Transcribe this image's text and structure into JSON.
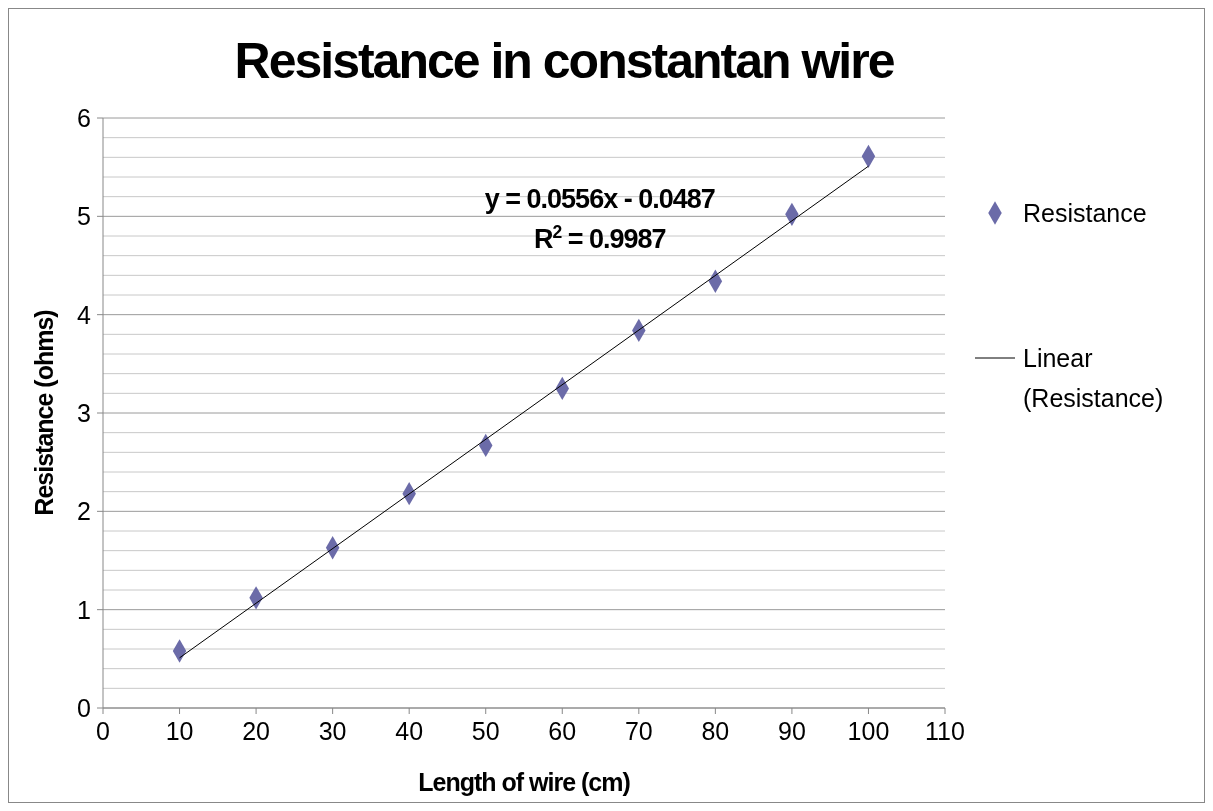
{
  "chart_data": {
    "type": "scatter",
    "title": "Resistance in constantan wire",
    "xlabel": "Length of wire (cm)",
    "ylabel": "Resistance (ohms)",
    "x": [
      10,
      20,
      30,
      40,
      50,
      60,
      70,
      80,
      90,
      100
    ],
    "series": [
      {
        "name": "Resistance",
        "color": "#6b6ba8",
        "marker": "diamond",
        "values": [
          0.58,
          1.12,
          1.63,
          2.18,
          2.67,
          3.25,
          3.84,
          4.34,
          5.02,
          5.61
        ]
      },
      {
        "name": "Linear (Resistance)",
        "type": "line",
        "color": "#000000",
        "marker": "none",
        "x": [
          10,
          100
        ],
        "values": [
          0.51,
          5.51
        ]
      }
    ],
    "xlim": [
      0,
      110
    ],
    "xticks": [
      0,
      10,
      20,
      30,
      40,
      50,
      60,
      70,
      80,
      90,
      100,
      110
    ],
    "ylim": [
      0,
      6
    ],
    "yticks": [
      0,
      {
        "value": 0.2,
        "label": null
      },
      {
        "value": 0.4,
        "label": null
      },
      {
        "value": 0.6,
        "label": null
      },
      {
        "value": 0.8,
        "label": null
      },
      1,
      {
        "value": 1.2,
        "label": null
      },
      {
        "value": 1.4,
        "label": null
      },
      {
        "value": 1.6,
        "label": null
      },
      {
        "value": 1.8,
        "label": null
      },
      2,
      {
        "value": 2.2,
        "label": null
      },
      {
        "value": 2.4,
        "label": null
      },
      {
        "value": 2.6,
        "label": null
      },
      {
        "value": 2.8,
        "label": null
      },
      3,
      {
        "value": 3.2,
        "label": null
      },
      {
        "value": 3.4,
        "label": null
      },
      {
        "value": 3.6,
        "label": null
      },
      {
        "value": 3.8,
        "label": null
      },
      4,
      {
        "value": 4.2,
        "label": null
      },
      {
        "value": 4.4,
        "label": null
      },
      {
        "value": 4.6,
        "label": null
      },
      {
        "value": 4.8,
        "label": null
      },
      5,
      {
        "value": 5.2,
        "label": null
      },
      {
        "value": 5.4,
        "label": null
      },
      {
        "value": 5.6,
        "label": null
      },
      {
        "value": 5.8,
        "label": null
      },
      6
    ],
    "grid": "y",
    "legend": "right",
    "annotations": [
      "y = 0.0556x - 0.0487",
      "R$^{2}$ = 0.9987"
    ]
  }
}
